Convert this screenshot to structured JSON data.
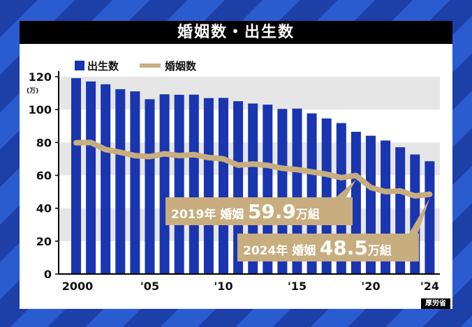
{
  "title": "婚姻数・出生数",
  "source": "厚労省",
  "chart_data": {
    "type": "bar+line",
    "title": "婚姻数・出生数",
    "ylabel": "(万)",
    "ylim": [
      0,
      120
    ],
    "yticks": [
      0,
      20,
      40,
      60,
      80,
      100,
      120
    ],
    "grid": "alternating bands",
    "legend": "top-left",
    "x": [
      2000,
      2001,
      2002,
      2003,
      2004,
      2005,
      2006,
      2007,
      2008,
      2009,
      2010,
      2011,
      2012,
      2013,
      2014,
      2015,
      2016,
      2017,
      2018,
      2019,
      2020,
      2021,
      2022,
      2023,
      2024
    ],
    "xtick_labels": [
      {
        "x": 2000,
        "label": "2000"
      },
      {
        "x": 2005,
        "label": "'05"
      },
      {
        "x": 2010,
        "label": "'10"
      },
      {
        "x": 2015,
        "label": "'15"
      },
      {
        "x": 2020,
        "label": "'20"
      },
      {
        "x": 2024,
        "label": "'24"
      }
    ],
    "series": [
      {
        "name": "出生数",
        "type": "bar",
        "color": "#1a35b0",
        "values": [
          119.1,
          117.1,
          115.4,
          112.4,
          111.1,
          106.3,
          109.3,
          109.0,
          109.1,
          107.0,
          107.1,
          105.1,
          103.7,
          103.0,
          100.4,
          100.6,
          97.7,
          94.6,
          91.8,
          86.5,
          84.1,
          81.2,
          77.1,
          72.7,
          68.6
        ]
      },
      {
        "name": "婚姻数",
        "type": "line",
        "color": "#c8ad7f",
        "values": [
          79.8,
          80.0,
          75.7,
          74.0,
          72.0,
          71.4,
          73.1,
          72.0,
          72.6,
          70.8,
          70.0,
          66.2,
          66.9,
          66.1,
          64.3,
          63.5,
          62.1,
          60.7,
          58.6,
          59.9,
          52.6,
          50.1,
          50.5,
          47.5,
          48.5
        ]
      }
    ],
    "annotations": [
      {
        "x": 2019,
        "y": 59.9,
        "prefix": "2019年 婚姻",
        "value": "59.9",
        "unit": "万組"
      },
      {
        "x": 2024,
        "y": 48.5,
        "prefix": "2024年 婚姻",
        "value": "48.5",
        "unit": "万組"
      }
    ]
  }
}
